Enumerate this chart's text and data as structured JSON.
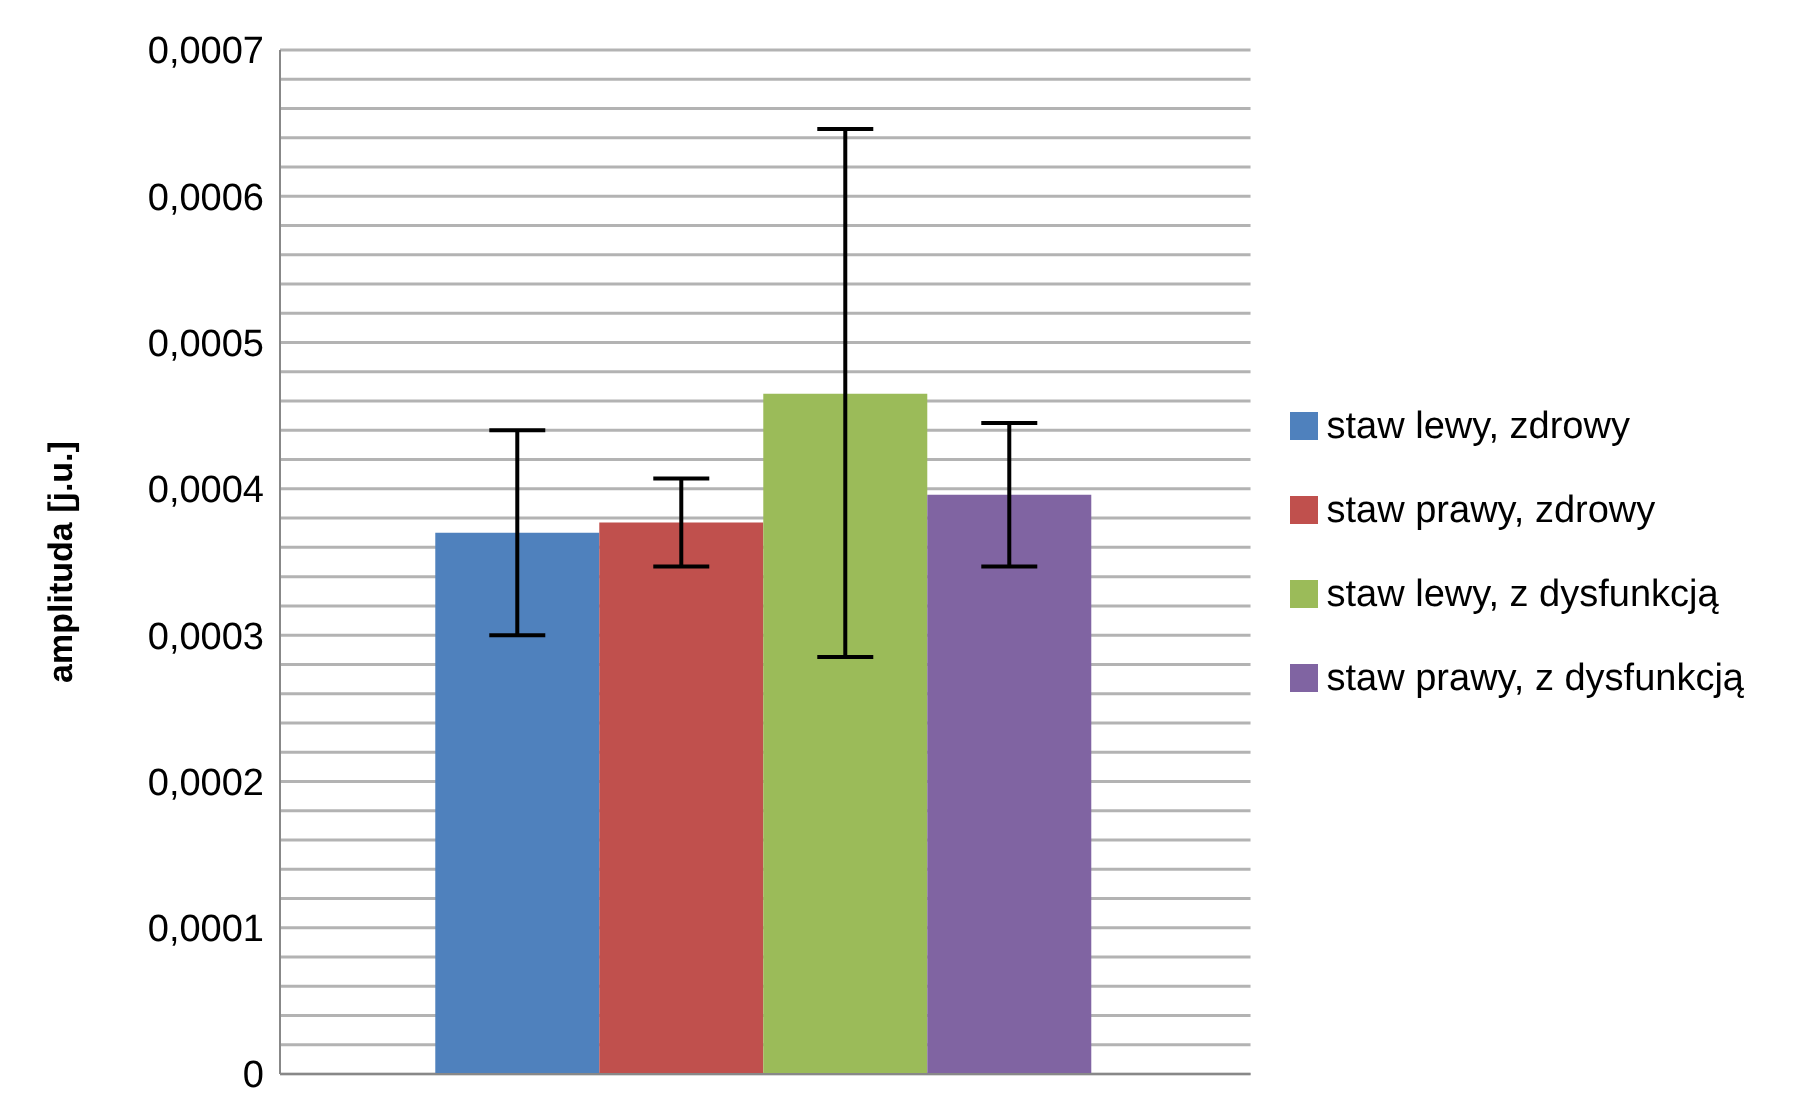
{
  "chart_data": {
    "type": "bar",
    "ylabel": "amplituda [j.u.]",
    "categories": [
      null
    ],
    "series": [
      {
        "name": "staw lewy, zdrowy",
        "color": "#4f81bd",
        "values": [
          0.00037
        ],
        "errors": [
          [
            0.0003,
            0.00044
          ]
        ]
      },
      {
        "name": "staw prawy, zdrowy",
        "color": "#c0504d",
        "values": [
          0.000377
        ],
        "errors": [
          [
            0.000347,
            0.000407
          ]
        ]
      },
      {
        "name": "staw lewy, z dysfunkcją",
        "color": "#9bbb59",
        "values": [
          0.000465
        ],
        "errors": [
          [
            0.000285,
            0.000646
          ]
        ]
      },
      {
        "name": "staw prawy, z dysfunkcją",
        "color": "#8064a2",
        "values": [
          0.000396
        ],
        "errors": [
          [
            0.000347,
            0.000445
          ]
        ]
      }
    ],
    "ylim": [
      0,
      0.0007
    ],
    "yticks": [
      0,
      {
        "value": 2e-05,
        "label": null
      },
      {
        "value": 4e-05,
        "label": null
      },
      {
        "value": 6e-05,
        "label": null
      },
      {
        "value": 8e-05,
        "label": null
      },
      {
        "value": 0.0001,
        "label": "0,0001"
      },
      {
        "value": 0.00012,
        "label": null
      },
      {
        "value": 0.00014,
        "label": null
      },
      {
        "value": 0.00016,
        "label": null
      },
      {
        "value": 0.00018,
        "label": null
      },
      {
        "value": 0.0002,
        "label": "0,0002"
      },
      {
        "value": 0.00022,
        "label": null
      },
      {
        "value": 0.00024,
        "label": null
      },
      {
        "value": 0.00026,
        "label": null
      },
      {
        "value": 0.00028,
        "label": null
      },
      {
        "value": 0.0003,
        "label": "0,0003"
      },
      {
        "value": 0.00032,
        "label": null
      },
      {
        "value": 0.00034,
        "label": null
      },
      {
        "value": 0.00036,
        "label": null
      },
      {
        "value": 0.00038,
        "label": null
      },
      {
        "value": 0.0004,
        "label": "0,0004"
      },
      {
        "value": 0.00042,
        "label": null
      },
      {
        "value": 0.00044,
        "label": null
      },
      {
        "value": 0.00046,
        "label": null
      },
      {
        "value": 0.00048,
        "label": null
      },
      {
        "value": 0.0005,
        "label": "0,0005"
      },
      {
        "value": 0.00052,
        "label": null
      },
      {
        "value": 0.00054,
        "label": null
      },
      {
        "value": 0.00056,
        "label": null
      },
      {
        "value": 0.00058,
        "label": null
      },
      {
        "value": 0.0006,
        "label": "0,0006"
      },
      {
        "value": 0.00062,
        "label": null
      },
      {
        "value": 0.00064,
        "label": null
      },
      {
        "value": 0.00066,
        "label": null
      },
      {
        "value": 0.00068,
        "label": null
      },
      {
        "value": 0.0007,
        "label": "0,0007"
      }
    ],
    "grid": "y",
    "legend": "right"
  }
}
